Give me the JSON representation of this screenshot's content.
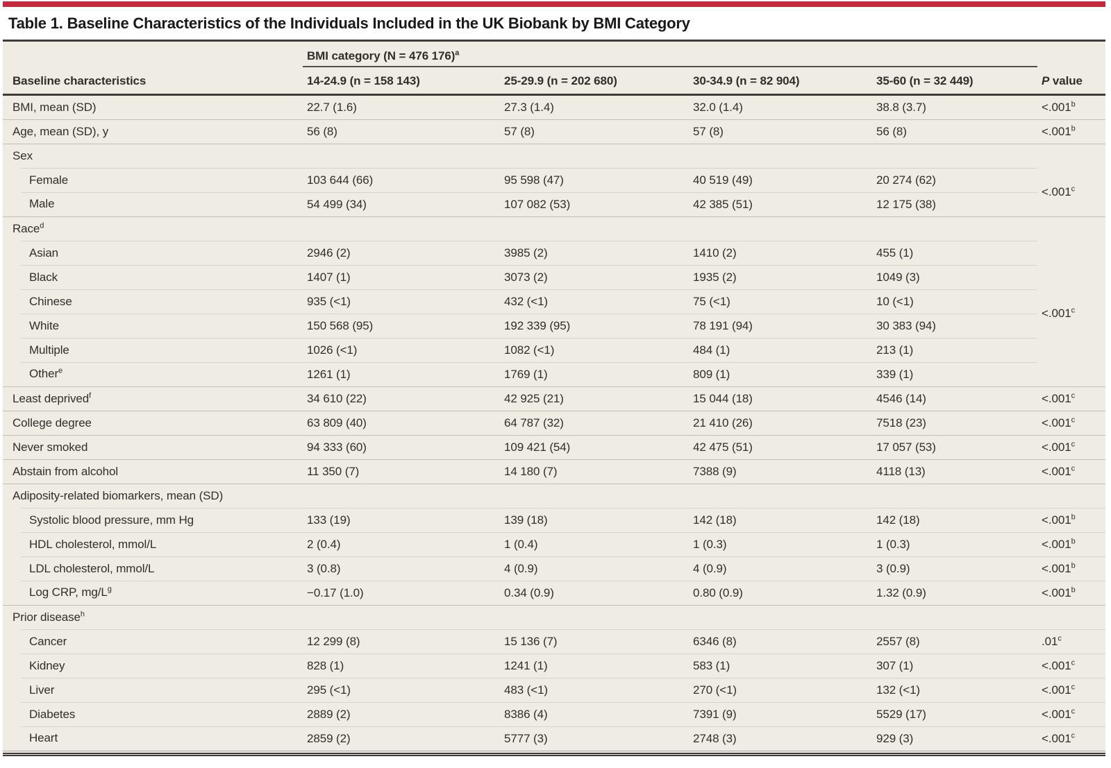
{
  "title": "Table 1. Baseline Characteristics of the Individuals Included in the UK Biobank by BMI Category",
  "colors": {
    "accent_bar_red": "#c42a3c",
    "table_background": "#efede3",
    "dark_rule": "#3e3d39",
    "row_line": "#c2bfb2",
    "sub_row_line": "#d7d4c7",
    "text": "#2f2e2a"
  },
  "table": {
    "spanner": {
      "label": "BMI category (N = 476 176)",
      "sup": "a"
    },
    "header": {
      "label_col": "Baseline characteristics",
      "group_cols": [
        "14-24.9 (n = 158 143)",
        "25-29.9 (n = 202 680)",
        "30-34.9 (n = 82 904)",
        "35-60 (n = 32 449)"
      ],
      "p_col_italic": "P",
      "p_col_rest": " value"
    },
    "rows": [
      {
        "label": "BMI, mean (SD)",
        "cells": [
          "22.7 (1.6)",
          "27.3 (1.4)",
          "32.0 (1.4)",
          "38.8 (3.7)"
        ],
        "p": "<.001",
        "p_sup": "b"
      },
      {
        "label": "Age, mean (SD), y",
        "cells": [
          "56 (8)",
          "57 (8)",
          "57 (8)",
          "56 (8)"
        ],
        "p": "<.001",
        "p_sup": "b"
      },
      {
        "label": "Sex",
        "section": true
      },
      {
        "label": "Female",
        "indent": true,
        "cells": [
          "103 644 (66)",
          "95 598 (47)",
          "40 519 (49)",
          "20 274 (62)"
        ],
        "p": "<.001",
        "p_sup": "c",
        "p_rowspan": 2
      },
      {
        "label": "Male",
        "indent": true,
        "cells": [
          "54 499 (34)",
          "107 082 (53)",
          "42 385 (51)",
          "12 175 (38)"
        ],
        "p_merged": true
      },
      {
        "label": "Race",
        "sup": "d",
        "section": true
      },
      {
        "label": "Asian",
        "indent": true,
        "cells": [
          "2946 (2)",
          "3985 (2)",
          "1410 (2)",
          "455 (1)"
        ],
        "p": "<.001",
        "p_sup": "c",
        "p_rowspan": 6
      },
      {
        "label": "Black",
        "indent": true,
        "cells": [
          "1407 (1)",
          "3073 (2)",
          "1935 (2)",
          "1049 (3)"
        ],
        "p_merged": true
      },
      {
        "label": "Chinese",
        "indent": true,
        "cells": [
          "935 (<1)",
          "432 (<1)",
          "75 (<1)",
          "10 (<1)"
        ],
        "p_merged": true
      },
      {
        "label": "White",
        "indent": true,
        "cells": [
          "150 568 (95)",
          "192 339 (95)",
          "78 191 (94)",
          "30 383 (94)"
        ],
        "p_merged": true
      },
      {
        "label": "Multiple",
        "indent": true,
        "cells": [
          "1026 (<1)",
          "1082 (<1)",
          "484 (1)",
          "213 (1)"
        ],
        "p_merged": true
      },
      {
        "label": "Other",
        "sup": "e",
        "indent": true,
        "cells": [
          "1261 (1)",
          "1769 (1)",
          "809 (1)",
          "339 (1)"
        ],
        "p_merged": true
      },
      {
        "label": "Least deprived",
        "sup": "f",
        "cells": [
          "34 610 (22)",
          "42 925 (21)",
          "15 044 (18)",
          "4546 (14)"
        ],
        "p": "<.001",
        "p_sup": "c"
      },
      {
        "label": "College degree",
        "cells": [
          "63 809 (40)",
          "64 787 (32)",
          "21 410 (26)",
          "7518 (23)"
        ],
        "p": "<.001",
        "p_sup": "c"
      },
      {
        "label": "Never smoked",
        "cells": [
          "94 333 (60)",
          "109 421 (54)",
          "42 475 (51)",
          "17 057 (53)"
        ],
        "p": "<.001",
        "p_sup": "c"
      },
      {
        "label": "Abstain from alcohol",
        "cells": [
          "11 350 (7)",
          "14 180 (7)",
          "7388 (9)",
          "4118 (13)"
        ],
        "p": "<.001",
        "p_sup": "c"
      },
      {
        "label": "Adiposity-related biomarkers, mean (SD)",
        "section": true
      },
      {
        "label": "Systolic blood pressure, mm Hg",
        "indent": true,
        "cells": [
          "133 (19)",
          "139 (18)",
          "142 (18)",
          "142 (18)"
        ],
        "p": "<.001",
        "p_sup": "b"
      },
      {
        "label": "HDL cholesterol, mmol/L",
        "indent": true,
        "cells": [
          "2 (0.4)",
          "1 (0.4)",
          "1 (0.3)",
          "1 (0.3)"
        ],
        "p": "<.001",
        "p_sup": "b"
      },
      {
        "label": "LDL cholesterol, mmol/L",
        "indent": true,
        "cells": [
          "3 (0.8)",
          "4 (0.9)",
          "4 (0.9)",
          "3 (0.9)"
        ],
        "p": "<.001",
        "p_sup": "b"
      },
      {
        "label": "Log CRP, mg/L",
        "sup": "g",
        "indent": true,
        "cells": [
          "−0.17 (1.0)",
          "0.34 (0.9)",
          "0.80 (0.9)",
          "1.32 (0.9)"
        ],
        "p": "<.001",
        "p_sup": "b"
      },
      {
        "label": "Prior disease",
        "sup": "h",
        "section": true
      },
      {
        "label": "Cancer",
        "indent": true,
        "cells": [
          "12 299 (8)",
          "15 136 (7)",
          "6346 (8)",
          "2557 (8)"
        ],
        "p": ".01",
        "p_sup": "c"
      },
      {
        "label": "Kidney",
        "indent": true,
        "cells": [
          "828 (1)",
          "1241 (1)",
          "583 (1)",
          "307 (1)"
        ],
        "p": "<.001",
        "p_sup": "c"
      },
      {
        "label": "Liver",
        "indent": true,
        "cells": [
          "295 (<1)",
          "483 (<1)",
          "270 (<1)",
          "132 (<1)"
        ],
        "p": "<.001",
        "p_sup": "c"
      },
      {
        "label": "Diabetes",
        "indent": true,
        "cells": [
          "2889 (2)",
          "8386 (4)",
          "7391 (9)",
          "5529 (17)"
        ],
        "p": "<.001",
        "p_sup": "c"
      },
      {
        "label": "Heart",
        "indent": true,
        "cells": [
          "2859 (2)",
          "5777 (3)",
          "2748 (3)",
          "929 (3)"
        ],
        "p": "<.001",
        "p_sup": "c"
      }
    ]
  }
}
